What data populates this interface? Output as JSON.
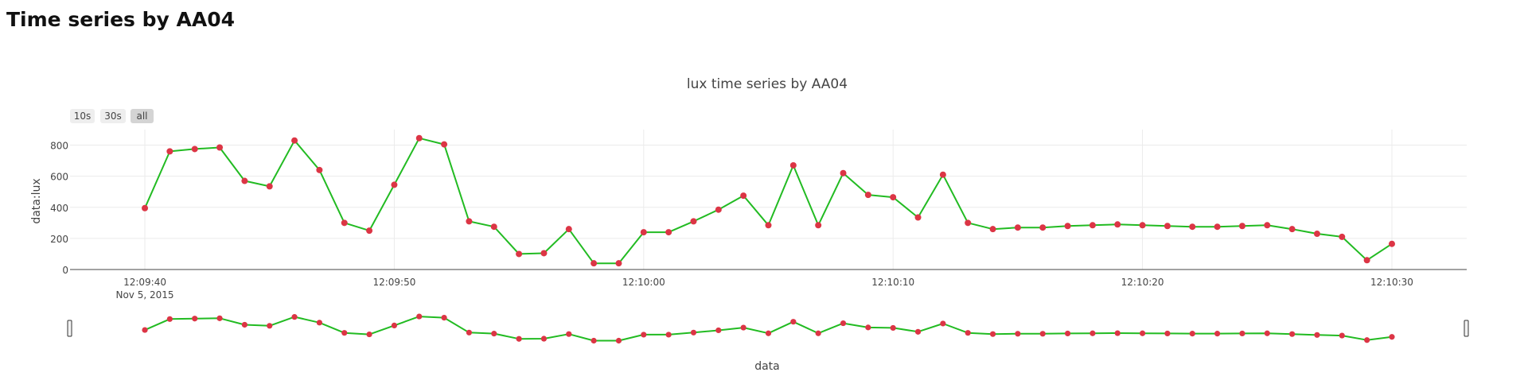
{
  "page": {
    "heading": "Time series by AA04"
  },
  "chart_data": {
    "type": "line",
    "title": "lux time series by AA04",
    "xlabel": "data",
    "ylabel": "data:lux",
    "range_selector": [
      "10s",
      "30s",
      "all"
    ],
    "active_range": "all",
    "x_start": "Nov 5, 2015 12:09:40",
    "x_range": [
      "12:09:37",
      "12:10:33"
    ],
    "ylim": [
      0,
      900
    ],
    "yticks": [
      "0",
      "200",
      "400",
      "600",
      "800"
    ],
    "xticks": [
      {
        "t": "12:09:40",
        "label": "12:09:40",
        "sublabel": "Nov 5, 2015"
      },
      {
        "t": "12:09:50",
        "label": "12:09:50",
        "sublabel": ""
      },
      {
        "t": "12:10:00",
        "label": "12:10:00",
        "sublabel": ""
      },
      {
        "t": "12:10:10",
        "label": "12:10:10",
        "sublabel": ""
      },
      {
        "t": "12:10:20",
        "label": "12:10:20",
        "sublabel": ""
      },
      {
        "t": "12:10:30",
        "label": "12:10:30",
        "sublabel": ""
      }
    ],
    "grid": true,
    "line_color": "#22bb22",
    "marker_color": "#dc3545",
    "series": [
      {
        "x": [
          "12:09:40",
          "12:09:41",
          "12:09:42",
          "12:09:43",
          "12:09:44",
          "12:09:45",
          "12:09:46",
          "12:09:47",
          "12:09:48",
          "12:09:49",
          "12:09:50",
          "12:09:51",
          "12:09:52",
          "12:09:53",
          "12:09:54",
          "12:09:55",
          "12:09:56",
          "12:09:57",
          "12:09:58",
          "12:09:59",
          "12:10:00",
          "12:10:01",
          "12:10:02",
          "12:10:03",
          "12:10:04",
          "12:10:05",
          "12:10:06",
          "12:10:07",
          "12:10:08",
          "12:10:09",
          "12:10:10",
          "12:10:11",
          "12:10:12",
          "12:10:13",
          "12:10:14",
          "12:10:15",
          "12:10:16",
          "12:10:17",
          "12:10:18",
          "12:10:19",
          "12:10:20",
          "12:10:21",
          "12:10:22",
          "12:10:23",
          "12:10:24",
          "12:10:25",
          "12:10:26",
          "12:10:27",
          "12:10:28",
          "12:10:29",
          "12:10:30"
        ],
        "y": [
          395,
          760,
          775,
          785,
          570,
          535,
          830,
          640,
          300,
          250,
          545,
          845,
          805,
          310,
          275,
          100,
          105,
          260,
          40,
          40,
          240,
          240,
          310,
          385,
          475,
          285,
          670,
          285,
          620,
          480,
          465,
          335,
          610,
          300,
          260,
          270,
          270,
          280,
          285,
          290,
          285,
          280,
          275,
          275,
          280,
          285,
          260,
          230,
          210,
          60,
          165
        ]
      }
    ]
  }
}
